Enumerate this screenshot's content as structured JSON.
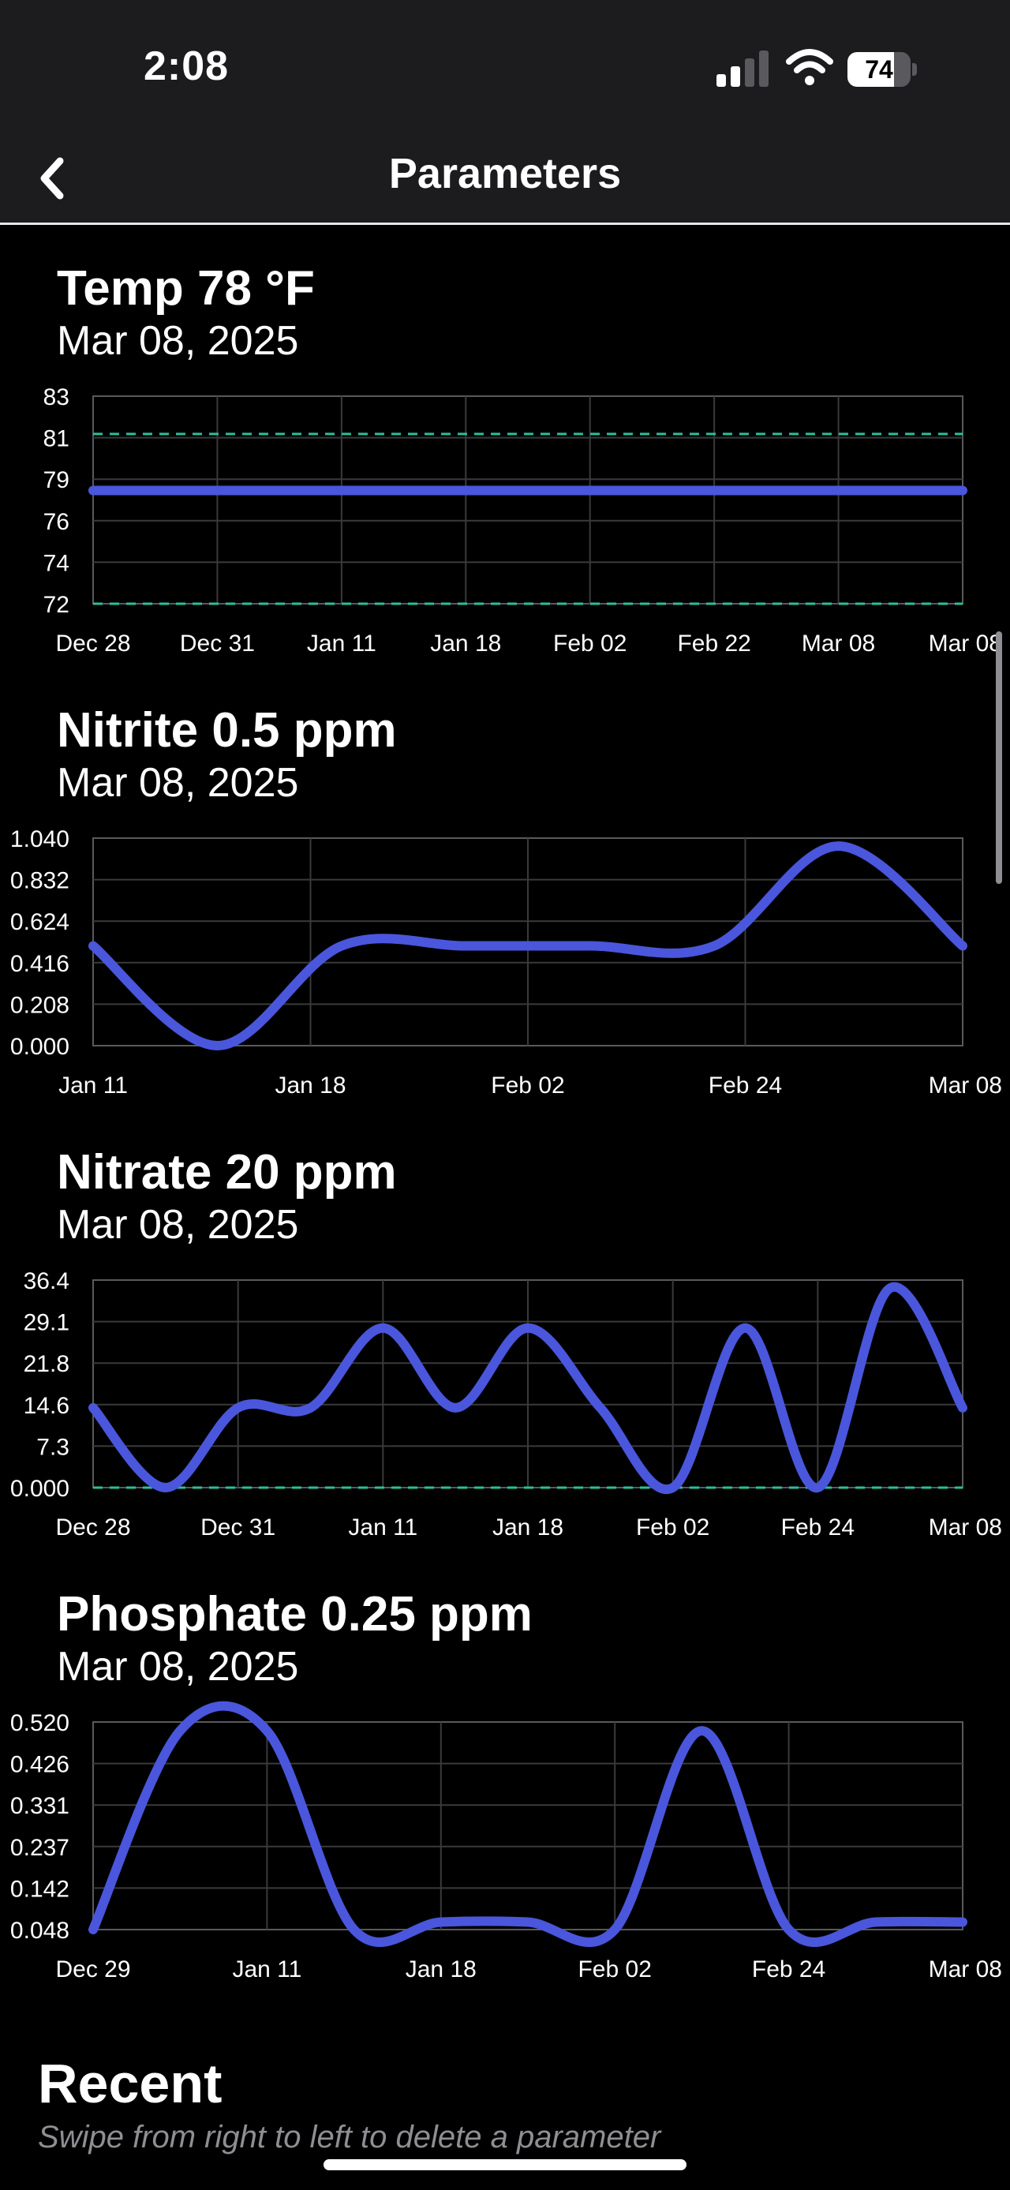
{
  "status_bar": {
    "time": "2:08",
    "battery": "74",
    "battery_level": 0.74
  },
  "nav": {
    "title": "Parameters",
    "back_icon": "chevron-left-icon"
  },
  "colors": {
    "series": "#4a56dc",
    "limit": "#2bbf9a",
    "grid": "#3a3a3c",
    "axis": "#5a5a5e"
  },
  "cards": [
    {
      "id": "temp",
      "title": "Temp 78 °F",
      "date": "Mar 08, 2025",
      "chart_data": {
        "type": "line",
        "xlabels": [
          "Dec 28",
          "Dec 31",
          "Jan 11",
          "Jan 18",
          "Feb 02",
          "Feb 22",
          "Mar 08",
          "Mar 08"
        ],
        "yticks": [
          "83",
          "81",
          "79",
          "76",
          "74",
          "72"
        ],
        "ylim": [
          72,
          83
        ],
        "values": [
          78,
          78,
          78,
          78,
          78,
          78,
          78,
          78
        ],
        "limits": [
          81,
          72
        ],
        "smooth": false
      }
    },
    {
      "id": "nitrite",
      "title": "Nitrite 0.5 ppm",
      "date": "Mar 08, 2025",
      "chart_data": {
        "type": "line",
        "xlabels": [
          "Jan 11",
          "Jan 18",
          "Feb 02",
          "Feb 24",
          "Mar 08"
        ],
        "yticks": [
          "1.040",
          "0.832",
          "0.624",
          "0.416",
          "0.208",
          "0.000"
        ],
        "ylim": [
          0,
          1.04
        ],
        "values": [
          0.5,
          0.0,
          0.5,
          0.5,
          0.5,
          0.5,
          1.0,
          0.5
        ],
        "limits": [],
        "smooth": true
      }
    },
    {
      "id": "nitrate",
      "title": "Nitrate 20 ppm",
      "date": "Mar 08, 2025",
      "chart_data": {
        "type": "line",
        "xlabels": [
          "Dec 28",
          "Dec 31",
          "Jan 11",
          "Jan 18",
          "Feb 02",
          "Feb 24",
          "Mar 08"
        ],
        "yticks": [
          "36.4",
          "29.1",
          "21.8",
          "14.6",
          "7.3",
          "0.000"
        ],
        "ylim": [
          0,
          36.4
        ],
        "values": [
          14,
          0,
          14,
          14,
          28,
          14,
          28,
          14,
          0,
          28,
          0,
          35,
          14
        ],
        "limits": [
          0
        ],
        "smooth": true
      }
    },
    {
      "id": "phosphate",
      "title": "Phosphate 0.25 ppm",
      "date": "Mar 08, 2025",
      "chart_data": {
        "type": "line",
        "xlabels": [
          "Dec 29",
          "Jan 11",
          "Jan 18",
          "Feb 02",
          "Feb 24",
          "Mar 08"
        ],
        "yticks": [
          "0.520",
          "0.426",
          "0.331",
          "0.237",
          "0.142",
          "0.048"
        ],
        "ylim": [
          0.048,
          0.52
        ],
        "values": [
          0.048,
          0.5,
          0.5,
          0.048,
          0.065,
          0.065,
          0.048,
          0.5,
          0.048,
          0.065,
          0.065
        ],
        "limits": [],
        "smooth": true
      }
    }
  ],
  "recent": {
    "title": "Recent",
    "hint": "Swipe from right to left to delete a parameter"
  }
}
